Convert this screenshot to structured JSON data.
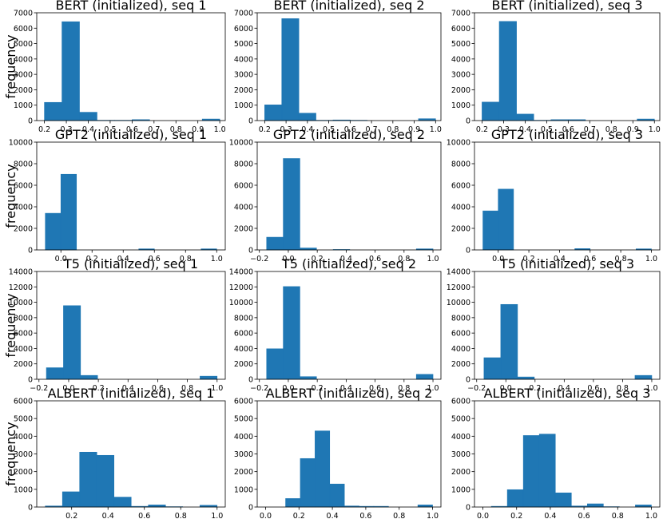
{
  "chart_data": [
    {
      "type": "bar",
      "title": "BERT (initialized), seq 1",
      "ylabel": "frequency",
      "xlim": [
        0.165,
        1.025
      ],
      "ylim": [
        0,
        7000
      ],
      "xticks": [
        0.2,
        0.3,
        0.4,
        0.5,
        0.6,
        0.7,
        0.8,
        0.9,
        1.0
      ],
      "xticklabels": [
        "0.2",
        "0.3",
        "0.4",
        "0.5",
        "0.6",
        "0.7",
        "0.8",
        "0.9",
        "1.0"
      ],
      "yticks": [
        0,
        1000,
        2000,
        3000,
        4000,
        5000,
        6000,
        7000
      ],
      "yticklabels": [
        "0",
        "1000",
        "2000",
        "3000",
        "4000",
        "5000",
        "6000",
        "7000"
      ],
      "bin_edges": [
        0.2,
        0.28,
        0.36,
        0.44,
        0.52,
        0.6,
        0.68,
        0.76,
        0.84,
        0.92,
        1.0
      ],
      "values": [
        1180,
        6420,
        540,
        20,
        20,
        60,
        0,
        0,
        0,
        100
      ]
    },
    {
      "type": "bar",
      "title": "BERT (initialized), seq 2",
      "ylabel": "",
      "xlim": [
        0.165,
        1.025
      ],
      "ylim": [
        0,
        7000
      ],
      "xticks": [
        0.2,
        0.3,
        0.4,
        0.5,
        0.6,
        0.7,
        0.8,
        0.9,
        1.0
      ],
      "xticklabels": [
        "0.2",
        "0.3",
        "0.4",
        "0.5",
        "0.6",
        "0.7",
        "0.8",
        "0.9",
        "1.0"
      ],
      "yticks": [
        0,
        1000,
        2000,
        3000,
        4000,
        5000,
        6000,
        7000
      ],
      "yticklabels": [
        "0",
        "1000",
        "2000",
        "3000",
        "4000",
        "5000",
        "6000",
        "7000"
      ],
      "bin_edges": [
        0.2,
        0.28,
        0.36,
        0.44,
        0.52,
        0.6,
        0.68,
        0.76,
        0.84,
        0.92,
        1.0
      ],
      "values": [
        1020,
        6620,
        480,
        20,
        40,
        20,
        0,
        0,
        0,
        120
      ]
    },
    {
      "type": "bar",
      "title": "BERT (initialized), seq 3",
      "ylabel": "",
      "xlim": [
        0.165,
        1.025
      ],
      "ylim": [
        0,
        7000
      ],
      "xticks": [
        0.2,
        0.3,
        0.4,
        0.5,
        0.6,
        0.7,
        0.8,
        0.9,
        1.0
      ],
      "xticklabels": [
        "0.2",
        "0.3",
        "0.4",
        "0.5",
        "0.6",
        "0.7",
        "0.8",
        "0.9",
        "1.0"
      ],
      "yticks": [
        0,
        1000,
        2000,
        3000,
        4000,
        5000,
        6000,
        7000
      ],
      "yticklabels": [
        "0",
        "1000",
        "2000",
        "3000",
        "4000",
        "5000",
        "6000",
        "7000"
      ],
      "bin_edges": [
        0.2,
        0.28,
        0.36,
        0.44,
        0.52,
        0.6,
        0.68,
        0.76,
        0.84,
        0.92,
        1.0
      ],
      "values": [
        1200,
        6440,
        420,
        20,
        60,
        60,
        0,
        0,
        0,
        100
      ]
    },
    {
      "type": "bar",
      "title": "GPT2 (initialized), seq 1",
      "ylabel": "frequency",
      "xlim": [
        -0.155,
        1.055
      ],
      "ylim": [
        0,
        10000
      ],
      "xticks": [
        0.0,
        0.2,
        0.4,
        0.6,
        0.8,
        1.0
      ],
      "xticklabels": [
        "0.0",
        "0.2",
        "0.4",
        "0.6",
        "0.8",
        "1.0"
      ],
      "yticks": [
        0,
        2000,
        4000,
        6000,
        8000,
        10000
      ],
      "yticklabels": [
        "0",
        "2000",
        "4000",
        "6000",
        "8000",
        "10000"
      ],
      "bin_edges": [
        -0.1,
        0.0,
        0.1,
        0.2,
        0.3,
        0.4,
        0.5,
        0.6,
        0.7,
        0.8,
        0.9,
        1.0
      ],
      "values": [
        3400,
        7020,
        0,
        0,
        0,
        0,
        100,
        0,
        0,
        0,
        100
      ]
    },
    {
      "type": "bar",
      "title": "GPT2 (initialized), seq 2",
      "ylabel": "",
      "xlim": [
        -0.215,
        1.055
      ],
      "ylim": [
        0,
        10000
      ],
      "xticks": [
        -0.2,
        0.0,
        0.2,
        0.4,
        0.6,
        0.8,
        1.0
      ],
      "xticklabels": [
        "−0.2",
        "0.0",
        "0.2",
        "0.4",
        "0.6",
        "0.8",
        "1.0"
      ],
      "yticks": [
        0,
        2000,
        4000,
        6000,
        8000,
        10000
      ],
      "yticklabels": [
        "0",
        "2000",
        "4000",
        "6000",
        "8000",
        "10000"
      ],
      "bin_edges": [
        -0.15,
        -0.035,
        0.08,
        0.195,
        0.31,
        0.425,
        0.54,
        0.655,
        0.77,
        0.885,
        1.0
      ],
      "values": [
        1180,
        8480,
        180,
        0,
        40,
        0,
        0,
        0,
        0,
        100
      ]
    },
    {
      "type": "bar",
      "title": "GPT2 (initialized), seq 3",
      "ylabel": "",
      "xlim": [
        -0.155,
        1.055
      ],
      "ylim": [
        0,
        10000
      ],
      "xticks": [
        0.0,
        0.2,
        0.4,
        0.6,
        0.8,
        1.0
      ],
      "xticklabels": [
        "0.0",
        "0.2",
        "0.4",
        "0.6",
        "0.8",
        "1.0"
      ],
      "yticks": [
        0,
        2000,
        4000,
        6000,
        8000,
        10000
      ],
      "yticklabels": [
        "0",
        "2000",
        "4000",
        "6000",
        "8000",
        "10000"
      ],
      "bin_edges": [
        -0.1,
        0.0,
        0.1,
        0.2,
        0.3,
        0.4,
        0.5,
        0.6,
        0.7,
        0.8,
        0.9,
        1.0
      ],
      "values": [
        3620,
        5640,
        0,
        0,
        0,
        0,
        120,
        0,
        0,
        0,
        100
      ]
    },
    {
      "type": "bar",
      "title": "T5 (initialized), seq 1",
      "ylabel": "frequency",
      "xlim": [
        -0.215,
        1.055
      ],
      "ylim": [
        0,
        14000
      ],
      "xticks": [
        -0.2,
        0.0,
        0.2,
        0.4,
        0.6,
        0.8,
        1.0
      ],
      "xticklabels": [
        "−0.2",
        "0.0",
        "0.2",
        "0.4",
        "0.6",
        "0.8",
        "1.0"
      ],
      "yticks": [
        0,
        2000,
        4000,
        6000,
        8000,
        10000,
        12000,
        14000
      ],
      "yticklabels": [
        "0",
        "2000",
        "4000",
        "6000",
        "8000",
        "10000",
        "12000",
        "14000"
      ],
      "bin_edges": [
        -0.15,
        -0.035,
        0.08,
        0.195,
        0.31,
        0.425,
        0.54,
        0.655,
        0.77,
        0.885,
        1.0
      ],
      "values": [
        1500,
        9560,
        500,
        0,
        0,
        0,
        0,
        0,
        0,
        400
      ]
    },
    {
      "type": "bar",
      "title": "T5 (initialized), seq 2",
      "ylabel": "",
      "xlim": [
        -0.215,
        1.055
      ],
      "ylim": [
        0,
        14000
      ],
      "xticks": [
        -0.2,
        0.0,
        0.2,
        0.4,
        0.6,
        0.8,
        1.0
      ],
      "xticklabels": [
        "−0.2",
        "0.0",
        "0.2",
        "0.4",
        "0.6",
        "0.8",
        "1.0"
      ],
      "yticks": [
        0,
        2000,
        4000,
        6000,
        8000,
        10000,
        12000,
        14000
      ],
      "yticklabels": [
        "0",
        "2000",
        "4000",
        "6000",
        "8000",
        "10000",
        "12000",
        "14000"
      ],
      "bin_edges": [
        -0.15,
        -0.035,
        0.08,
        0.195,
        0.31,
        0.425,
        0.54,
        0.655,
        0.77,
        0.885,
        1.0
      ],
      "values": [
        3960,
        12040,
        340,
        0,
        0,
        0,
        0,
        0,
        0,
        640
      ]
    },
    {
      "type": "bar",
      "title": "T5 (initialized), seq 3",
      "ylabel": "",
      "xlim": [
        -0.215,
        1.055
      ],
      "ylim": [
        0,
        14000
      ],
      "xticks": [
        -0.2,
        0.0,
        0.2,
        0.4,
        0.6,
        0.8,
        1.0
      ],
      "xticklabels": [
        "−0.2",
        "0.0",
        "0.2",
        "0.4",
        "0.6",
        "0.8",
        "1.0"
      ],
      "yticks": [
        0,
        2000,
        4000,
        6000,
        8000,
        10000,
        12000,
        14000
      ],
      "yticklabels": [
        "0",
        "2000",
        "4000",
        "6000",
        "8000",
        "10000",
        "12000",
        "14000"
      ],
      "bin_edges": [
        -0.15,
        -0.035,
        0.08,
        0.195,
        0.31,
        0.425,
        0.54,
        0.655,
        0.77,
        0.885,
        1.0
      ],
      "values": [
        2800,
        9720,
        300,
        0,
        0,
        0,
        0,
        0,
        0,
        500
      ]
    },
    {
      "type": "bar",
      "title": "ALBERT (initialized), seq 1",
      "ylabel": "frequency",
      "xlim": [
        0.008,
        1.045
      ],
      "ylim": [
        0,
        6000
      ],
      "xticks": [
        0.2,
        0.4,
        0.6,
        0.8,
        1.0
      ],
      "xticklabels": [
        "0.2",
        "0.4",
        "0.6",
        "0.8",
        "1.0"
      ],
      "yticks": [
        0,
        1000,
        2000,
        3000,
        4000,
        5000,
        6000
      ],
      "yticklabels": [
        "0",
        "1000",
        "2000",
        "3000",
        "4000",
        "5000",
        "6000"
      ],
      "bin_edges": [
        0.055,
        0.1495,
        0.244,
        0.3385,
        0.433,
        0.5275,
        0.622,
        0.7165,
        0.811,
        0.9055,
        1.0
      ],
      "values": [
        60,
        860,
        3100,
        2920,
        560,
        40,
        120,
        20,
        0,
        100
      ]
    },
    {
      "type": "bar",
      "title": "ALBERT (initialized), seq 2",
      "ylabel": "",
      "xlim": [
        -0.05,
        1.05
      ],
      "ylim": [
        0,
        6000
      ],
      "xticks": [
        0.0,
        0.2,
        0.4,
        0.6,
        0.8,
        1.0
      ],
      "xticklabels": [
        "0.0",
        "0.2",
        "0.4",
        "0.6",
        "0.8",
        "1.0"
      ],
      "yticks": [
        0,
        1000,
        2000,
        3000,
        4000,
        5000,
        6000
      ],
      "yticklabels": [
        "0",
        "1000",
        "2000",
        "3000",
        "4000",
        "5000",
        "6000"
      ],
      "bin_edges": [
        0.12,
        0.208,
        0.296,
        0.384,
        0.472,
        0.56,
        0.648,
        0.736,
        0.824,
        0.912,
        1.0
      ],
      "values": [
        480,
        2740,
        4300,
        1300,
        60,
        40,
        40,
        0,
        0,
        120
      ]
    },
    {
      "type": "bar",
      "title": "ALBERT (initialized), seq 3",
      "ylabel": "",
      "xlim": [
        -0.05,
        1.05
      ],
      "ylim": [
        0,
        6000
      ],
      "xticks": [
        0.0,
        0.2,
        0.4,
        0.6,
        0.8,
        1.0
      ],
      "xticklabels": [
        "0.0",
        "0.2",
        "0.4",
        "0.6",
        "0.8",
        "1.0"
      ],
      "yticks": [
        0,
        1000,
        2000,
        3000,
        4000,
        5000,
        6000
      ],
      "yticklabels": [
        "0",
        "1000",
        "2000",
        "3000",
        "4000",
        "5000",
        "6000"
      ],
      "bin_edges": [
        0.05,
        0.145,
        0.24,
        0.335,
        0.43,
        0.525,
        0.62,
        0.715,
        0.81,
        0.905,
        1.0
      ],
      "values": [
        40,
        980,
        4040,
        4120,
        800,
        60,
        180,
        20,
        0,
        120
      ]
    }
  ]
}
